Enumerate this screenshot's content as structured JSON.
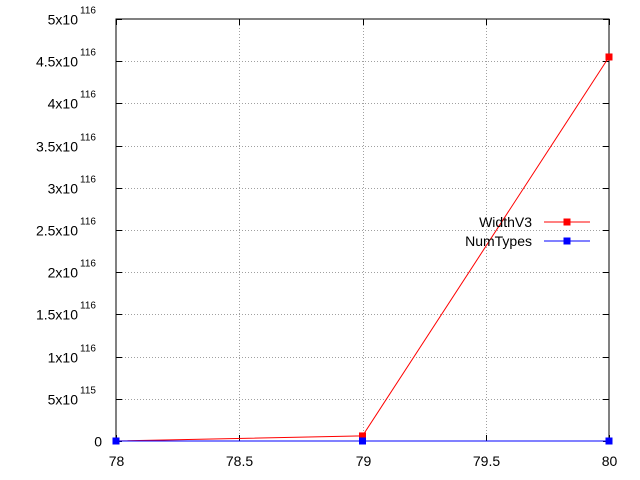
{
  "chart_data": {
    "type": "line",
    "title": "",
    "xlabel": "",
    "ylabel": "",
    "x": [
      78,
      79,
      80
    ],
    "xlim": [
      78,
      80
    ],
    "ylim": [
      0,
      5e+116
    ],
    "grid": true,
    "legend_position": "right",
    "x_ticks": [
      {
        "value": 78,
        "label": "78"
      },
      {
        "value": 78.5,
        "label": "78.5"
      },
      {
        "value": 79,
        "label": "79"
      },
      {
        "value": 79.5,
        "label": "79.5"
      },
      {
        "value": 80,
        "label": "80"
      }
    ],
    "y_ticks": [
      {
        "value": 0,
        "mantissa": "0",
        "exp": ""
      },
      {
        "value": 5e+115,
        "mantissa": "5x10",
        "exp": "115"
      },
      {
        "value": 1e+116,
        "mantissa": "1x10",
        "exp": "116"
      },
      {
        "value": 1.5e+116,
        "mantissa": "1.5x10",
        "exp": "116"
      },
      {
        "value": 2e+116,
        "mantissa": "2x10",
        "exp": "116"
      },
      {
        "value": 2.5e+116,
        "mantissa": "2.5x10",
        "exp": "116"
      },
      {
        "value": 3e+116,
        "mantissa": "3x10",
        "exp": "116"
      },
      {
        "value": 3.5e+116,
        "mantissa": "3.5x10",
        "exp": "116"
      },
      {
        "value": 4e+116,
        "mantissa": "4x10",
        "exp": "116"
      },
      {
        "value": 4.5e+116,
        "mantissa": "4.5x10",
        "exp": "116"
      },
      {
        "value": 5e+116,
        "mantissa": "5x10",
        "exp": "116"
      }
    ],
    "series": [
      {
        "name": "WidthV3",
        "color": "#ff0000",
        "values": [
          0,
          6e+114,
          4.55e+116
        ]
      },
      {
        "name": "NumTypes",
        "color": "#0000ff",
        "values": [
          0,
          0,
          0
        ]
      }
    ]
  }
}
